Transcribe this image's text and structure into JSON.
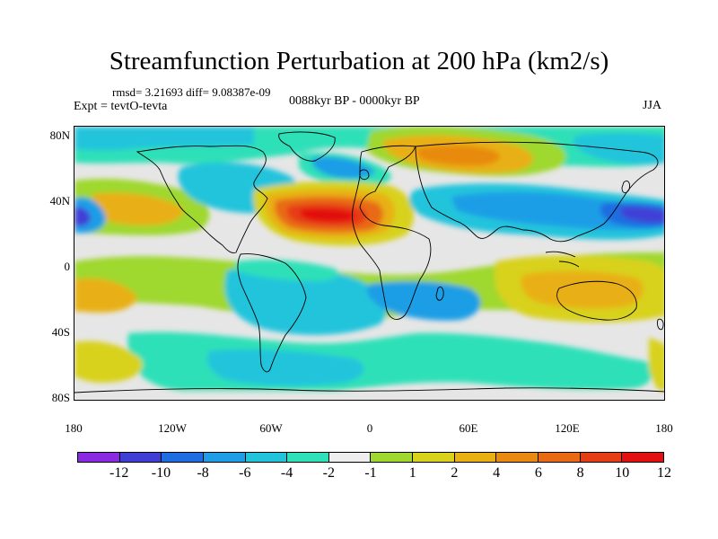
{
  "header": {
    "title": "Streamfunction Perturbation at 200 hPa (km2/s)",
    "stats": "rmsd= 3.21693 diff= 9.08387e-09",
    "experiment": "Expt = tevtO-tevta",
    "period": "0088kyr BP - 0000kyr BP",
    "season": "JJA"
  },
  "axes": {
    "y_ticks": [
      "80N",
      "40N",
      "0",
      "40S",
      "80S"
    ],
    "x_ticks": [
      "180",
      "120W",
      "60W",
      "0",
      "60E",
      "120E",
      "180"
    ]
  },
  "colorbar": {
    "colors": [
      "#8a2be2",
      "#3f3fd6",
      "#1f6de0",
      "#1f9ee6",
      "#22c4dc",
      "#2fe0b8",
      "#eeeeee",
      "#9fd82e",
      "#d8d21a",
      "#e8b012",
      "#e88a10",
      "#e86a12",
      "#e63e14",
      "#e21010"
    ],
    "labels": [
      "-12",
      "-10",
      "-8",
      "-6",
      "-4",
      "-2",
      "-1",
      "1",
      "2",
      "4",
      "6",
      "8",
      "10",
      "12"
    ]
  },
  "map": {
    "background_color": "#e6e6e6"
  }
}
